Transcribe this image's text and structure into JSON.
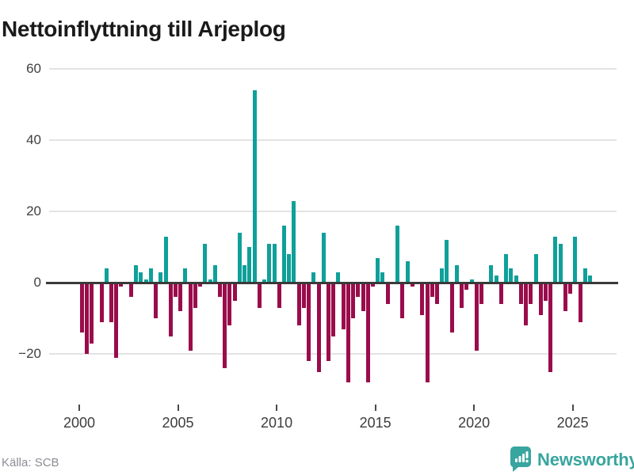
{
  "title": "Nettoinflyttning till Arjeplog",
  "source": "Källa: SCB",
  "brand": {
    "name": "Newsworthy",
    "icon": "newsworthy-speech-bubble-chart-icon",
    "color": "#38a59e"
  },
  "colors": {
    "positive": "#0fa09a",
    "negative": "#9a0c4b",
    "gridline": "#e3e3e3",
    "zero_line": "#3a3a3a",
    "axis_text": "#404040",
    "title_text": "#1a1a1a",
    "source_text": "#8c8c94"
  },
  "chart_data": {
    "type": "bar",
    "title": "Nettoinflyttning till Arjeplog",
    "series_name": "Nettoinflyttning per kvartal",
    "x_unit": "quarter",
    "start": "2000-Q1",
    "end": "2025-Q4",
    "ylim": [
      -29,
      60
    ],
    "grid": true,
    "legend": false,
    "yticks": [
      {
        "value": 60,
        "label": "60"
      },
      {
        "value": 40,
        "label": "40"
      },
      {
        "value": 20,
        "label": "20"
      },
      {
        "value": 0,
        "label": "0"
      },
      {
        "value": -20,
        "label": "−20"
      }
    ],
    "xticks": [
      {
        "value": 2000,
        "label": "2000"
      },
      {
        "value": 2005,
        "label": "2005"
      },
      {
        "value": 2010,
        "label": "2010"
      },
      {
        "value": 2015,
        "label": "2015"
      },
      {
        "value": 2020,
        "label": "2020"
      },
      {
        "value": 2025,
        "label": "2025"
      }
    ],
    "years": [
      {
        "year": 2000,
        "values": [
          -14,
          -20,
          -17,
          0
        ]
      },
      {
        "year": 2001,
        "values": [
          -11,
          4,
          -11,
          -21
        ]
      },
      {
        "year": 2002,
        "values": [
          -1,
          0,
          -4,
          5
        ]
      },
      {
        "year": 2003,
        "values": [
          3,
          1,
          4,
          -10
        ]
      },
      {
        "year": 2004,
        "values": [
          3,
          13,
          -15,
          -4
        ]
      },
      {
        "year": 2005,
        "values": [
          -8,
          4,
          -19,
          -7
        ]
      },
      {
        "year": 2006,
        "values": [
          -1,
          11,
          1,
          5
        ]
      },
      {
        "year": 2007,
        "values": [
          -4,
          -24,
          -12,
          -5
        ]
      },
      {
        "year": 2008,
        "values": [
          14,
          5,
          10,
          54
        ]
      },
      {
        "year": 2009,
        "values": [
          -7,
          1,
          11,
          11
        ]
      },
      {
        "year": 2010,
        "values": [
          -7,
          16,
          8,
          23
        ]
      },
      {
        "year": 2011,
        "values": [
          -12,
          -7,
          -22,
          3
        ]
      },
      {
        "year": 2012,
        "values": [
          -25,
          14,
          -22,
          -15
        ]
      },
      {
        "year": 2013,
        "values": [
          3,
          -13,
          -28,
          -10
        ]
      },
      {
        "year": 2014,
        "values": [
          -4,
          -8,
          -28,
          -1
        ]
      },
      {
        "year": 2015,
        "values": [
          7,
          3,
          -6,
          0
        ]
      },
      {
        "year": 2016,
        "values": [
          16,
          -10,
          6,
          -1
        ]
      },
      {
        "year": 2017,
        "values": [
          0,
          -9,
          -28,
          -4
        ]
      },
      {
        "year": 2018,
        "values": [
          -6,
          4,
          12,
          -14
        ]
      },
      {
        "year": 2019,
        "values": [
          5,
          -7,
          -2,
          1
        ]
      },
      {
        "year": 2020,
        "values": [
          -19,
          -6,
          0,
          5
        ]
      },
      {
        "year": 2021,
        "values": [
          2,
          -6,
          8,
          4
        ]
      },
      {
        "year": 2022,
        "values": [
          2,
          -6,
          -12,
          -6
        ]
      },
      {
        "year": 2023,
        "values": [
          8,
          -9,
          -5,
          -25
        ]
      },
      {
        "year": 2024,
        "values": [
          13,
          11,
          -8,
          -3
        ]
      },
      {
        "year": 2025,
        "values": [
          13,
          -11,
          4,
          2
        ]
      }
    ]
  }
}
